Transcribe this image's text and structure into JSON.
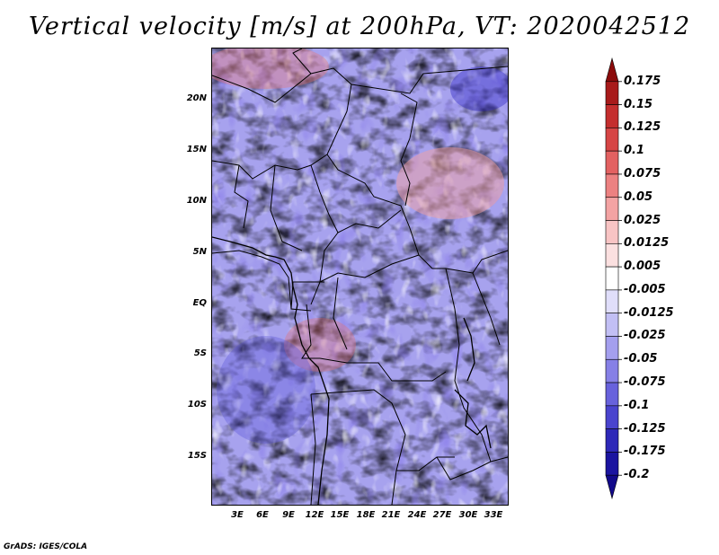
{
  "title": "Vertical velocity [m/s] at 200hPa, VT: 2020042512",
  "credit": "GrADS: IGES/COLA",
  "lat_labels": [
    "20N",
    "15N",
    "10N",
    "5N",
    "EQ",
    "5S",
    "10S",
    "15S"
  ],
  "lon_labels": [
    "3E",
    "6E",
    "9E",
    "12E",
    "15E",
    "18E",
    "21E",
    "24E",
    "27E",
    "30E",
    "33E"
  ],
  "colorbar": {
    "labels": [
      "0.175",
      "0.15",
      "0.125",
      "0.1",
      "0.075",
      "0.05",
      "0.025",
      "0.0125",
      "0.005",
      "-0.005",
      "-0.0125",
      "-0.025",
      "-0.05",
      "-0.075",
      "-0.1",
      "-0.125",
      "-0.175",
      "-0.2"
    ],
    "colors": [
      "#8b0b0b",
      "#a81a1a",
      "#c42e2e",
      "#d64545",
      "#e36161",
      "#ec8181",
      "#f3a3a3",
      "#f8c4c4",
      "#fbe0e0",
      "#ffffff",
      "#e0defa",
      "#c2bff4",
      "#a49fee",
      "#8680e6",
      "#6862dc",
      "#4a44ce",
      "#2e28b8",
      "#1b14a0",
      "#12098a"
    ]
  },
  "colors": {
    "positive": "#e34b4b",
    "negative": "#3f35d6"
  }
}
